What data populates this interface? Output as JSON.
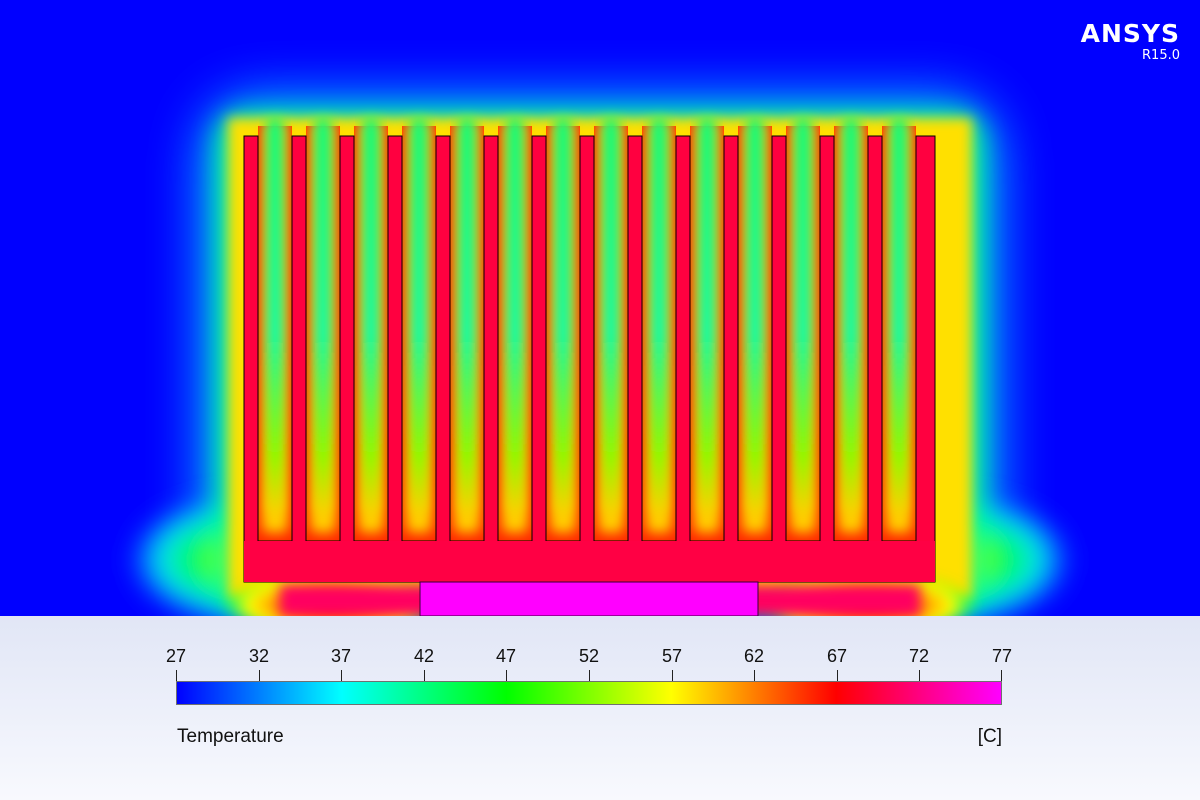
{
  "brand": {
    "name": "ANSYS",
    "version": "R15.0"
  },
  "legend": {
    "quantity": "Temperature",
    "unit": "[C]",
    "min": 27,
    "max": 77,
    "ticks": [
      "27",
      "32",
      "37",
      "42",
      "47",
      "52",
      "57",
      "62",
      "67",
      "72",
      "77"
    ],
    "colormap": [
      "#0000ff",
      "#00ffff",
      "#00ff00",
      "#ffff00",
      "#ff0000",
      "#ff00ff"
    ]
  },
  "colors": {
    "ambient": "#0000ff",
    "heatsink": "#ff0040",
    "heat_source": "#ff00ff"
  },
  "heatsink": {
    "fin_count": 15,
    "fin_temperature_c": 69,
    "base_temperature_c": 71,
    "heat_source_temperature_c": 77,
    "ambient_temperature_c": 27
  }
}
